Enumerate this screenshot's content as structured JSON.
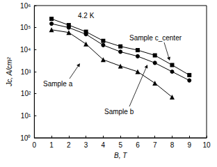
{
  "chart_data": {
    "type": "line",
    "x_label": "B, T",
    "y_label": "Jc, A/cm²",
    "annotations": [
      "4.2 K"
    ],
    "log": "y",
    "grid": false,
    "xlim": [
      0,
      10
    ],
    "xticks": [
      0,
      1,
      2,
      3,
      4,
      5,
      6,
      7,
      8,
      9,
      10
    ],
    "ylim": [
      1,
      1000000
    ],
    "yticks": [
      {
        "value": 1,
        "label": "10⁰"
      },
      {
        "value": 10,
        "label": "10¹"
      },
      {
        "value": 100,
        "label": "10²"
      },
      {
        "value": 1000,
        "label": "10³"
      },
      {
        "value": 10000,
        "label": "10⁴"
      },
      {
        "value": 100000,
        "label": "10⁵"
      },
      {
        "value": 1000000,
        "label": "10⁶"
      }
    ],
    "x": [
      1,
      2,
      3,
      4,
      5,
      6,
      7,
      8,
      9
    ],
    "series": [
      {
        "name": "Sample c_center",
        "color": "#000000",
        "marker": "square",
        "line_style": "solid",
        "values": [
          250000,
          130000,
          65000,
          25000,
          14000,
          9500,
          5500,
          2000,
          700
        ]
      },
      {
        "name": "Sample b",
        "color": "#000000",
        "marker": "circle",
        "line_style": "solid",
        "values": [
          150000,
          100000,
          50000,
          16000,
          8000,
          5000,
          2500,
          1000,
          400
        ]
      },
      {
        "name": "Sample a",
        "color": "#000000",
        "marker": "triangle",
        "line_style": "solid",
        "values": [
          80000,
          60000,
          18000,
          3500,
          1800,
          1000,
          300,
          70,
          null
        ]
      }
    ]
  }
}
